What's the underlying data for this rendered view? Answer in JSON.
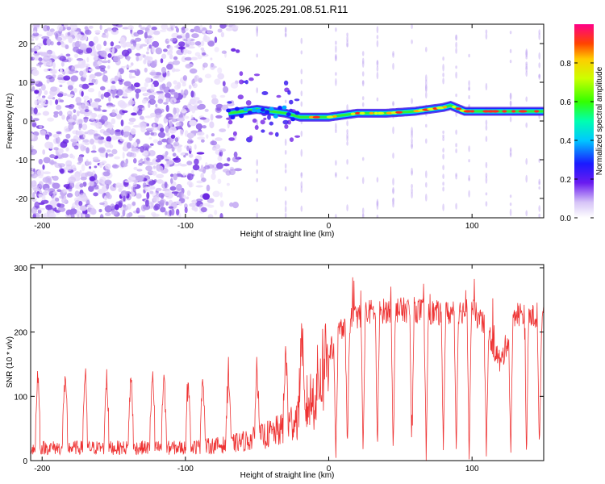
{
  "title": "S196.2025.291.08.51.R11",
  "chart_data": [
    {
      "type": "heatmap",
      "title": "S196.2025.291.08.51.R11",
      "xlabel": "Height of straight line (km)",
      "ylabel": "Frequency (Hz)",
      "xlim": [
        -208,
        150
      ],
      "ylim": [
        -25,
        25
      ],
      "xticks": [
        -200,
        -100,
        0,
        100
      ],
      "yticks": [
        20,
        10,
        0,
        -10,
        -20
      ],
      "colorbar": {
        "label": "Normalized spectral amplitude",
        "range": [
          0,
          1
        ],
        "ticks": [
          0.0,
          0.2,
          0.4,
          0.6,
          0.8
        ]
      },
      "ridge": {
        "description": "dominant frequency line",
        "x": [
          -70,
          -50,
          -30,
          -20,
          0,
          20,
          40,
          60,
          80,
          85,
          95,
          100,
          120,
          150
        ],
        "y": [
          2,
          3,
          2,
          1,
          1,
          2,
          2,
          2.5,
          3.5,
          4,
          2.5,
          2.5,
          2.5,
          2.5
        ]
      },
      "noise_region": [
        -208,
        -70
      ]
    },
    {
      "type": "line",
      "xlabel": "Height of straight line (km)",
      "ylabel": "SNR (10 * v/v)",
      "xlim": [
        -208,
        150
      ],
      "ylim": [
        0,
        305
      ],
      "xticks": [
        -200,
        -100,
        0,
        100
      ],
      "yticks": [
        0,
        100,
        200,
        300
      ],
      "series": [
        {
          "name": "SNR",
          "color": "#ee3333",
          "x": [
            -208,
            -150,
            -100,
            -70,
            -50,
            -30,
            -20,
            -10,
            -5,
            0,
            5,
            10,
            20,
            30,
            60,
            80,
            100,
            110,
            120,
            130,
            150
          ],
          "y": [
            20,
            20,
            20,
            25,
            35,
            50,
            75,
            100,
            140,
            170,
            180,
            210,
            225,
            232,
            235,
            228,
            235,
            205,
            150,
            230,
            220
          ]
        }
      ],
      "spikes_x": [
        -203,
        -184,
        -170,
        -155,
        -138,
        -123,
        -115,
        -98,
        -88,
        -70,
        -50,
        -30,
        -19,
        5,
        13,
        24,
        34,
        45,
        58,
        68,
        80,
        89,
        98,
        110,
        127,
        138,
        147
      ]
    }
  ]
}
